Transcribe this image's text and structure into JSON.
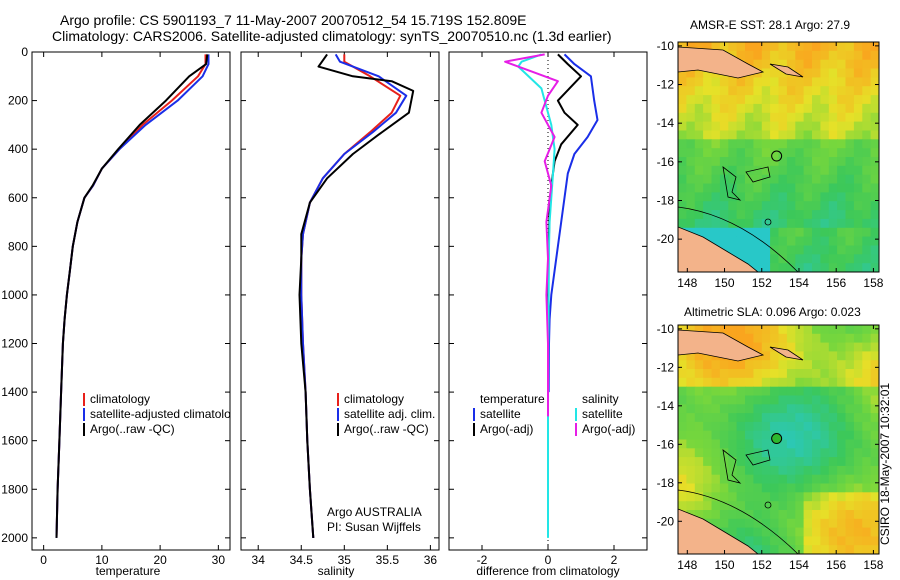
{
  "header": {
    "line1": "Argo profile: CS 5901193_7 11-May-2007 20070512_54 15.719S 152.809E",
    "line2": "Climatology: CARS2006. Satellite-adjusted climatology: synTS_20070510.nc (1.3d earlier)"
  },
  "credit": "CSIRO 18-May-2007 10:32:01",
  "colors": {
    "climatology": "#e8201a",
    "satellite": "#1a2ee8",
    "argo": "#000000",
    "cyan": "#22e6e6",
    "magenta": "#e61ee6"
  },
  "chart_data": [
    {
      "type": "line",
      "id": "temperature",
      "xlabel": "temperature",
      "ylabel": "",
      "xlim": [
        -2,
        32
      ],
      "ylim": [
        2050,
        0
      ],
      "xticks": [
        0,
        10,
        20,
        30
      ],
      "yticks": [
        0,
        200,
        400,
        600,
        800,
        1000,
        1200,
        1400,
        1600,
        1800,
        2000
      ],
      "legend": [
        "climatology",
        "satellite-adjusted climatology",
        "Argo(..raw -QC)"
      ],
      "series": [
        {
          "name": "climatology",
          "color": "#e8201a",
          "x": [
            27.8,
            27.8,
            26.5,
            22,
            17,
            13,
            10,
            8.5,
            7,
            5.8,
            5,
            4.5,
            4,
            3.6,
            3.3,
            3,
            2.7,
            2.4,
            2.2
          ],
          "y": [
            10,
            50,
            100,
            200,
            300,
            400,
            480,
            550,
            600,
            700,
            800,
            900,
            1000,
            1100,
            1200,
            1400,
            1600,
            1800,
            2000
          ]
        },
        {
          "name": "satellite-adjusted climatology",
          "color": "#1a2ee8",
          "x": [
            28.3,
            28.3,
            27.3,
            23,
            17.5,
            13,
            10,
            8.5,
            7,
            5.8,
            5,
            4.5,
            4,
            3.6,
            3.3,
            3,
            2.7,
            2.4,
            2.2
          ],
          "y": [
            10,
            50,
            100,
            200,
            300,
            400,
            480,
            550,
            600,
            700,
            800,
            900,
            1000,
            1100,
            1200,
            1400,
            1600,
            1800,
            2000
          ]
        },
        {
          "name": "Argo(..raw -QC)",
          "color": "#000000",
          "x": [
            28.1,
            27.9,
            25,
            21,
            16.5,
            12.8,
            10,
            8.4,
            7,
            5.8,
            5,
            4.5,
            4,
            3.6,
            3.3,
            3,
            2.7,
            2.4,
            2.2
          ],
          "y": [
            10,
            50,
            100,
            200,
            300,
            400,
            480,
            550,
            600,
            700,
            800,
            900,
            1000,
            1100,
            1200,
            1400,
            1600,
            1800,
            2000
          ]
        }
      ]
    },
    {
      "type": "line",
      "id": "salinity",
      "xlabel": "salinity",
      "xlim": [
        33.8,
        36.1
      ],
      "ylim": [
        2050,
        0
      ],
      "xticks": [
        34,
        34.5,
        35,
        35.5,
        36
      ],
      "legend": [
        "climatology",
        "satellite adj. clim.",
        "Argo(..raw -QC)"
      ],
      "annotation": [
        "Argo AUSTRALIA",
        "PI: Susan Wijffels"
      ],
      "series": [
        {
          "name": "climatology",
          "color": "#e8201a",
          "x": [
            35.0,
            35.0,
            35.3,
            35.65,
            35.55,
            35.3,
            35.0,
            34.75,
            34.6,
            34.52,
            34.5,
            34.5,
            34.52,
            34.55,
            34.57,
            34.6,
            34.62,
            34.64
          ],
          "y": [
            10,
            40,
            100,
            180,
            250,
            330,
            420,
            520,
            620,
            750,
            850,
            1000,
            1200,
            1400,
            1600,
            1800,
            1900,
            2000
          ]
        },
        {
          "name": "satellite adj. clim.",
          "color": "#1a2ee8",
          "x": [
            34.9,
            34.95,
            35.4,
            35.72,
            35.6,
            35.33,
            35.0,
            34.75,
            34.6,
            34.52,
            34.5,
            34.5,
            34.52,
            34.55,
            34.57,
            34.6,
            34.62,
            34.64
          ],
          "y": [
            10,
            40,
            100,
            180,
            250,
            330,
            420,
            520,
            620,
            750,
            850,
            1000,
            1200,
            1400,
            1600,
            1800,
            1900,
            2000
          ]
        },
        {
          "name": "Argo(..raw -QC)",
          "color": "#000000",
          "x": [
            34.8,
            34.7,
            35.1,
            35.55,
            35.8,
            35.75,
            35.4,
            35.1,
            34.8,
            34.6,
            34.5,
            34.5,
            34.48,
            34.5,
            34.55,
            34.57,
            34.6,
            34.62,
            34.64
          ],
          "y": [
            10,
            60,
            100,
            120,
            160,
            250,
            340,
            420,
            520,
            620,
            750,
            850,
            1000,
            1200,
            1400,
            1600,
            1800,
            1900,
            2000
          ]
        }
      ]
    },
    {
      "type": "line",
      "id": "difference",
      "xlabel": "difference from climatology",
      "xlim": [
        -3,
        3
      ],
      "ylim": [
        2050,
        0
      ],
      "xticks": [
        -2,
        0,
        2
      ],
      "legend_groups": [
        {
          "title": "temperature",
          "items": [
            "satellite",
            "Argo(-adj)"
          ]
        },
        {
          "title": "salinity",
          "items": [
            "satellite",
            "Argo(-adj)"
          ]
        }
      ],
      "series": [
        {
          "name": "temperature satellite",
          "color": "#1a2ee8",
          "x": [
            0.5,
            0.8,
            1.3,
            1.4,
            1.5,
            1.2,
            0.8,
            0.6,
            0.5,
            0.4,
            0.3,
            0.2,
            0.1,
            0.05,
            0.03,
            0.02
          ],
          "y": [
            10,
            50,
            100,
            200,
            280,
            350,
            420,
            500,
            600,
            700,
            800,
            900,
            1000,
            1100,
            1200,
            1400
          ]
        },
        {
          "name": "temperature Argo(-adj)",
          "color": "#000000",
          "x": [
            0.3,
            0.6,
            1.0,
            0.3,
            0.5,
            0.9,
            0.4,
            0.2,
            0.1,
            0.05,
            0.03,
            0.0,
            0.0,
            0.0
          ],
          "y": [
            10,
            50,
            100,
            200,
            250,
            300,
            380,
            450,
            550,
            650,
            750,
            850,
            1000,
            1100
          ]
        },
        {
          "name": "salinity satellite",
          "color": "#22e6e6",
          "x": [
            -0.2,
            -0.8,
            -0.9,
            -0.2,
            -0.1,
            0.1,
            0.2,
            0.15,
            0.1,
            0.05,
            0.03,
            0.02,
            0.01,
            0.0,
            0.0,
            0.0
          ],
          "y": [
            10,
            40,
            60,
            150,
            200,
            300,
            400,
            500,
            600,
            700,
            800,
            1000,
            1200,
            1500,
            1800,
            2000
          ]
        },
        {
          "name": "salinity Argo(-adj)",
          "color": "#e61ee6",
          "x": [
            -0.1,
            -1.3,
            -0.5,
            0.3,
            0.0,
            -0.2,
            0.2,
            -0.1,
            0.1,
            -0.05,
            0.0,
            -0.05,
            0.0,
            0.0
          ],
          "y": [
            10,
            40,
            80,
            120,
            180,
            250,
            350,
            450,
            550,
            700,
            850,
            1000,
            1200,
            1500
          ]
        }
      ]
    },
    {
      "type": "heatmap",
      "id": "sst-map",
      "title": "AMSR-E SST: 28.1 Argo: 27.9",
      "xlim": [
        147.5,
        158.3
      ],
      "ylim": [
        -21.7,
        -9.8
      ],
      "xticks": [
        148,
        150,
        152,
        154,
        156,
        158
      ],
      "yticks": [
        -10,
        -12,
        -14,
        -16,
        -18,
        -20
      ],
      "argo_position": [
        152.8,
        -15.7
      ]
    },
    {
      "type": "heatmap",
      "id": "sla-map",
      "title": "Altimetric SLA: 0.096 Argo: 0.023",
      "xlim": [
        147.5,
        158.3
      ],
      "ylim": [
        -21.7,
        -9.8
      ],
      "xticks": [
        148,
        150,
        152,
        154,
        156,
        158
      ],
      "yticks": [
        -10,
        -12,
        -14,
        -16,
        -18,
        -20
      ],
      "argo_position": [
        152.8,
        -15.7
      ]
    }
  ]
}
